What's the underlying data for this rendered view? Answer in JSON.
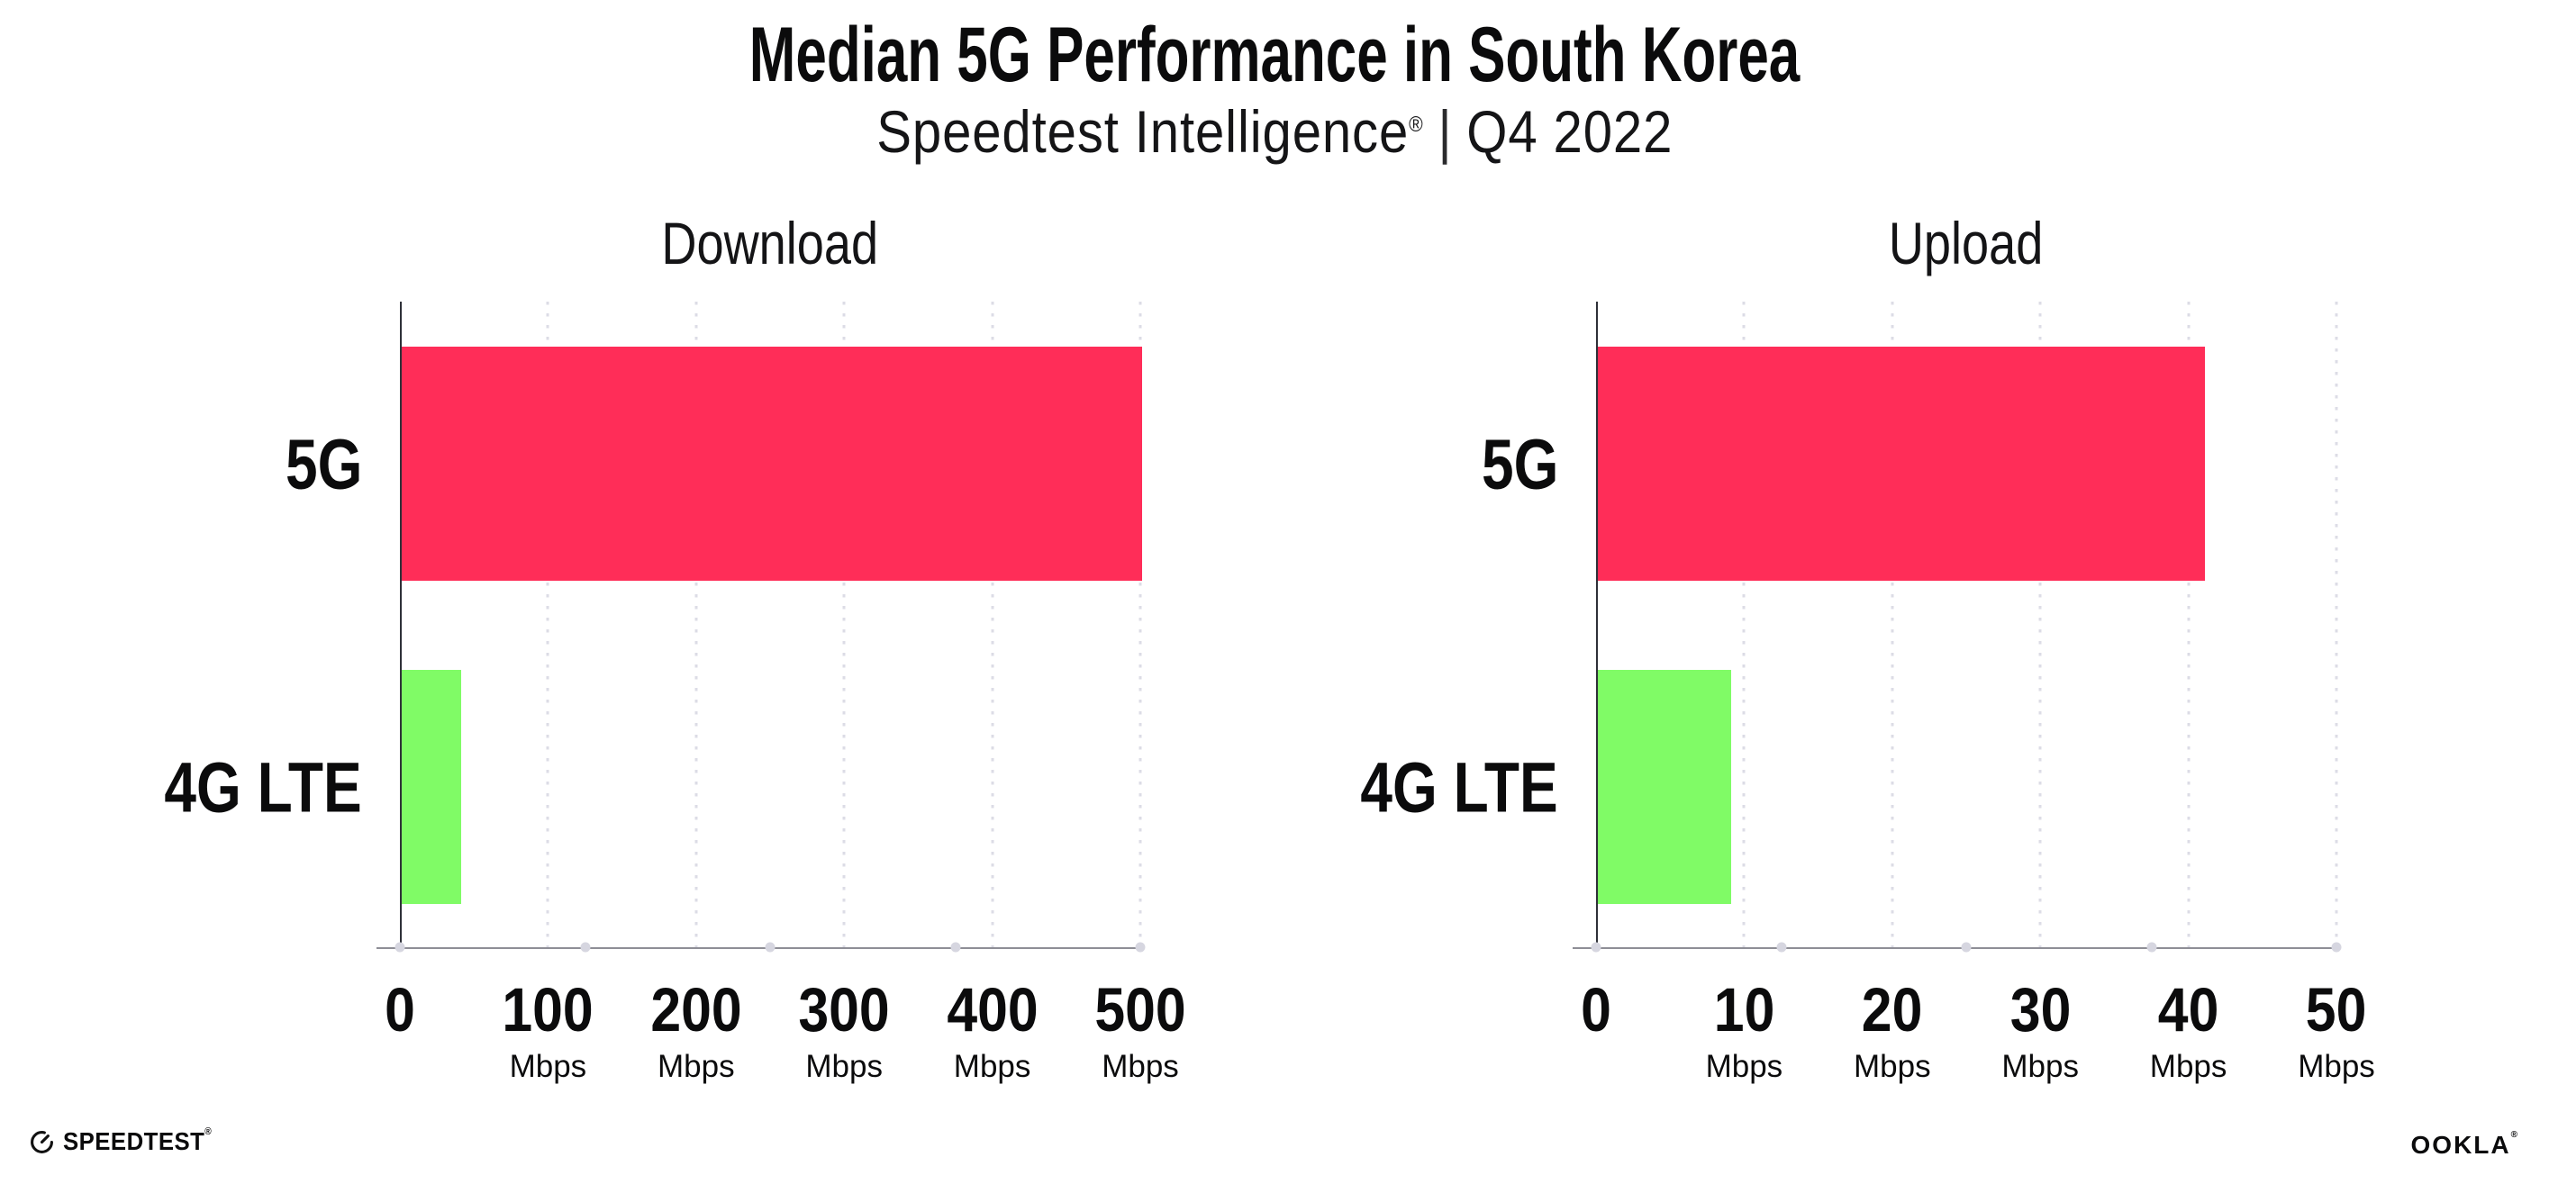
{
  "header": {
    "title": "Median 5G Performance in South Korea",
    "subtitle_brand": "Speedtest Intelligence",
    "subtitle_reg": "®",
    "subtitle_sep": "|",
    "subtitle_period": "Q4 2022"
  },
  "chart_data": [
    {
      "type": "bar",
      "orientation": "horizontal",
      "title": "Download",
      "categories": [
        "5G",
        "4G LTE"
      ],
      "values": [
        500,
        40
      ],
      "unit": "Mbps",
      "xlabel": "",
      "ylabel": "",
      "xlim": [
        0,
        500
      ],
      "xticks": [
        0,
        100,
        200,
        300,
        400,
        500
      ],
      "bar_colors": [
        "#FF2D58",
        "#80FB66"
      ],
      "grid": "dotted-vertical",
      "legend": "none"
    },
    {
      "type": "bar",
      "orientation": "horizontal",
      "title": "Upload",
      "categories": [
        "5G",
        "4G LTE"
      ],
      "values": [
        41,
        9
      ],
      "unit": "Mbps",
      "xlabel": "",
      "ylabel": "",
      "xlim": [
        0,
        50
      ],
      "xticks": [
        0,
        10,
        20,
        30,
        40,
        50
      ],
      "bar_colors": [
        "#FF2D58",
        "#80FB66"
      ],
      "grid": "dotted-vertical",
      "legend": "none"
    }
  ],
  "footer": {
    "speedtest_wordmark": "SPEEDTEST",
    "speedtest_reg": "®",
    "ookla_wordmark": "OOKLA",
    "ookla_reg": "®"
  },
  "colors": {
    "bar_5g": "#FF2D58",
    "bar_4g_lte": "#80FB66",
    "gridline": "#DCDCE6",
    "axis_left": "#2E3038",
    "axis_bottom": "#8E8E96",
    "axis_marker_dot": "#D6D6E0",
    "text": "#0B0B0C",
    "background": "#FFFFFF"
  }
}
